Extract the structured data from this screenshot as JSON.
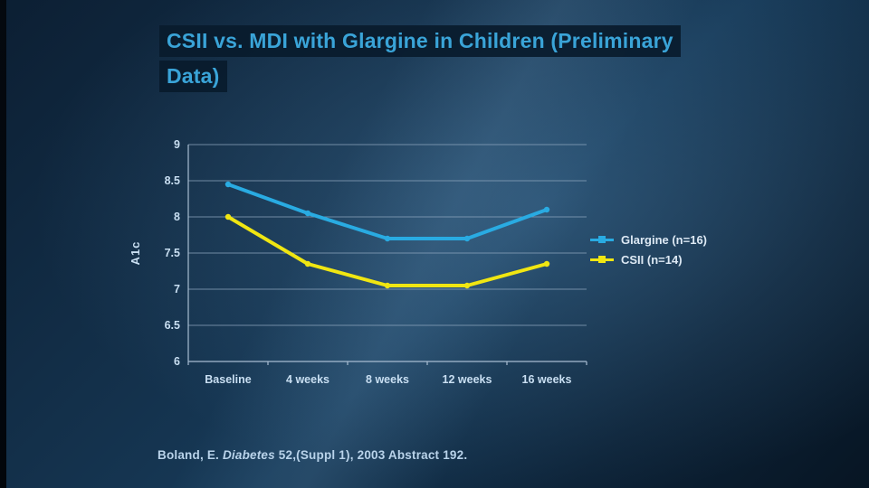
{
  "slide": {
    "title_lines": [
      "CSII vs. MDI with Glargine in Children (Preliminary",
      "Data)"
    ],
    "title_color": "#3aa4d8",
    "citation": {
      "pre": "Boland, E. ",
      "italic": "Diabetes",
      "post": " 52,(Suppl 1), 2003 Abstract 192."
    }
  },
  "chart_data": {
    "type": "line",
    "categories": [
      "Baseline",
      "4 weeks",
      "8 weeks",
      "12 weeks",
      "16 weeks"
    ],
    "series": [
      {
        "name": "Glargine (n=16)",
        "color": "#29abe2",
        "values": [
          8.45,
          8.05,
          7.7,
          7.7,
          8.1
        ]
      },
      {
        "name": "CSII (n=14)",
        "color": "#f0e612",
        "values": [
          8.0,
          7.35,
          7.05,
          7.05,
          7.35
        ]
      }
    ],
    "title": "",
    "xlabel": "",
    "ylabel": "A1c",
    "ylim": [
      6,
      9
    ],
    "yticks": [
      9,
      8.5,
      8,
      7.5,
      7,
      6.5,
      6
    ],
    "ytick_labels": [
      "9",
      "8.5",
      "8",
      "7.5",
      "7",
      "6.5",
      "6"
    ],
    "grid": true,
    "legend_position": "right",
    "grid_color": "#8ea6bd",
    "axis_color": "#a8bdd2",
    "tick_label_color": "#c9dff2"
  }
}
